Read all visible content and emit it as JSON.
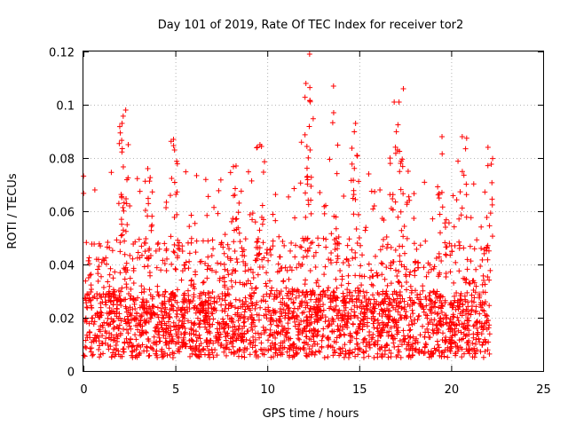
{
  "chart_data": {
    "type": "scatter",
    "title": "Day 101 of 2019, Rate Of TEC Index for receiver tor2",
    "xlabel": "GPS time / hours",
    "ylabel": "ROTI / TECUs",
    "xlim": [
      0,
      25
    ],
    "ylim": [
      0,
      0.12
    ],
    "xticks": [
      0,
      5,
      10,
      15,
      20,
      25
    ],
    "xtick_labels": [
      "0",
      "5",
      "10",
      "15",
      "20",
      "25"
    ],
    "yticks": [
      0,
      0.02,
      0.04,
      0.06,
      0.08,
      0.1,
      0.12
    ],
    "ytick_labels": [
      "0",
      "0.02",
      "0.04",
      "0.06",
      "0.08",
      "0.1",
      "0.12"
    ],
    "grid": true,
    "marker": "+",
    "color": "#ff0000",
    "series": [
      {
        "name": "ROTI",
        "x_range": [
          0,
          22.1
        ],
        "typical_range": [
          0.005,
          0.03
        ],
        "spikes": [
          {
            "x": 2.1,
            "y": 0.093
          },
          {
            "x": 2.3,
            "y": 0.098
          },
          {
            "x": 3.5,
            "y": 0.076
          },
          {
            "x": 4.9,
            "y": 0.087
          },
          {
            "x": 8.3,
            "y": 0.077
          },
          {
            "x": 9.6,
            "y": 0.085
          },
          {
            "x": 12.1,
            "y": 0.108
          },
          {
            "x": 12.3,
            "y": 0.119
          },
          {
            "x": 13.6,
            "y": 0.107
          },
          {
            "x": 14.8,
            "y": 0.093
          },
          {
            "x": 16.9,
            "y": 0.101
          },
          {
            "x": 17.4,
            "y": 0.106
          },
          {
            "x": 19.5,
            "y": 0.088
          },
          {
            "x": 20.6,
            "y": 0.088
          },
          {
            "x": 22.0,
            "y": 0.084
          }
        ]
      }
    ]
  }
}
